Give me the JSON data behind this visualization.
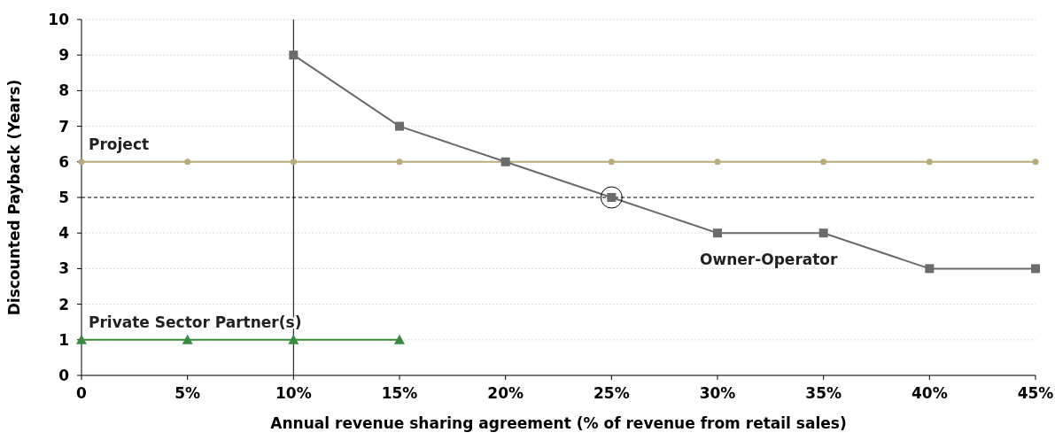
{
  "chart_data": {
    "type": "line",
    "xlabel": "Annual revenue sharing agreement (% of revenue from retail sales)",
    "ylabel": "Discounted Payback (Years)",
    "xlim": [
      0,
      45
    ],
    "xticks": [
      0,
      {
        "value": 5,
        "label": "5%"
      },
      {
        "value": 10,
        "label": "10%"
      },
      {
        "value": 15,
        "label": "15%"
      },
      {
        "value": 20,
        "label": "20%"
      },
      {
        "value": 25,
        "label": "25%"
      },
      {
        "value": 30,
        "label": "30%"
      },
      {
        "value": 35,
        "label": "35%"
      },
      {
        "value": 40,
        "label": "40%"
      },
      {
        "value": 45,
        "label": "45%"
      }
    ],
    "ylim": [
      0,
      10
    ],
    "yticks": [
      0,
      1,
      2,
      3,
      4,
      5,
      6,
      7,
      8,
      9,
      10
    ],
    "grid": "y",
    "series": [
      {
        "name": "Project",
        "color": "#b8ab7c",
        "marker": "circle",
        "x": [
          0,
          5,
          10,
          15,
          20,
          25,
          30,
          35,
          40,
          45
        ],
        "values": [
          6,
          6,
          6,
          6,
          6,
          6,
          6,
          6,
          6,
          6
        ]
      },
      {
        "name": "Owner-Operator",
        "color": "#6b6b6b",
        "marker": "square",
        "x": [
          10,
          15,
          20,
          25,
          30,
          35,
          40,
          45
        ],
        "values": [
          9,
          7,
          6,
          5,
          4,
          4,
          3,
          3
        ]
      },
      {
        "name": "Private Sector Partner(s)",
        "color": "#3a8a3e",
        "marker": "triangle",
        "x": [
          0,
          5,
          10,
          15
        ],
        "values": [
          1,
          1,
          1,
          1
        ]
      }
    ],
    "ref_lines": [
      {
        "axis": "x",
        "value": 10,
        "color": "#000000",
        "line_style": "solid"
      },
      {
        "axis": "y",
        "value": 5,
        "color": "#000000",
        "line_style": "dashed"
      }
    ]
  }
}
